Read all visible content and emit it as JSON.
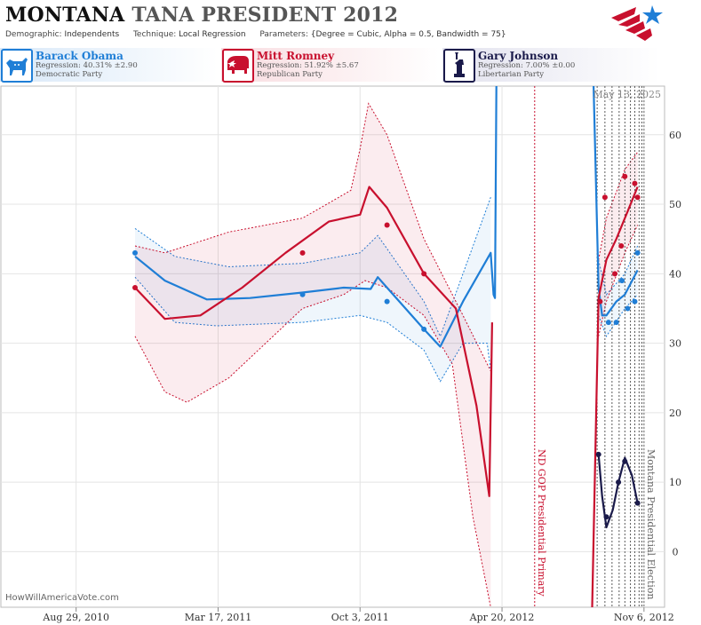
{
  "header": {
    "title_main": "MONTANA",
    "title_rest": "TANA PRESIDENT 2012",
    "demographic_label": "Demographic:",
    "demographic_value": "Independents",
    "technique_label": "Technique:",
    "technique_value": "Local Regression",
    "parameters_label": "Parameters:",
    "parameters_value": "{Degree = Cubic, Alpha = 0.5, Bandwidth = 75}"
  },
  "logo_icon": "star-stripes-logo-icon",
  "candidates": [
    {
      "name": "Barack Obama",
      "regression": "Regression: 40.31% ±2.90",
      "party": "Democratic Party",
      "color": "#1f7ed6",
      "icon": "donkey-icon"
    },
    {
      "name": "Mitt Romney",
      "regression": "Regression: 51.92% ±5.67",
      "party": "Republican Party",
      "color": "#c8102e",
      "icon": "elephant-icon"
    },
    {
      "name": "Gary Johnson",
      "regression": "Regression: 7.00% ±0.00",
      "party": "Libertarian Party",
      "color": "#1a1a4a",
      "icon": "liberty-statue-icon"
    }
  ],
  "footer_brand": "HowWillAmericaVote.com",
  "chart_data": {
    "type": "line",
    "date_stamp": "May 13, 2025",
    "x_ticks": [
      "Aug 29, 2010",
      "Mar 17, 2011",
      "Oct 3, 2011",
      "Apr 20, 2012",
      "Nov 6, 2012"
    ],
    "x_range": [
      "2010-05-15",
      "2012-12-05"
    ],
    "y_ticks": [
      0,
      10,
      20,
      30,
      40,
      50,
      60
    ],
    "ylim": [
      -8,
      67
    ],
    "grid": true,
    "events": [
      {
        "date": "2012-06-05",
        "label": "ND GOP Presidential Primary",
        "color": "#c8102e"
      },
      {
        "date": "2012-11-06",
        "label": "Montana Presidential Election",
        "color": "#666666"
      }
    ],
    "poll_lines": [
      "2012-09-01",
      "2012-09-12",
      "2012-09-22",
      "2012-10-02",
      "2012-10-10",
      "2012-10-18",
      "2012-10-24",
      "2012-10-30",
      "2012-11-03"
    ],
    "series": [
      {
        "name": "Barack Obama",
        "color": "#1f7ed6",
        "points": [
          [
            "2010-11-20",
            43
          ],
          [
            "2011-07-14",
            37
          ],
          [
            "2011-11-10",
            36
          ],
          [
            "2012-01-01",
            32
          ],
          [
            "2012-09-05",
            36
          ],
          [
            "2012-09-17",
            33
          ],
          [
            "2012-09-28",
            33
          ],
          [
            "2012-10-06",
            39
          ],
          [
            "2012-10-14",
            35
          ],
          [
            "2012-10-24",
            36
          ],
          [
            "2012-10-28",
            43
          ]
        ],
        "trend": [
          [
            "2010-11-20",
            42.5
          ],
          [
            "2011-01-01",
            39
          ],
          [
            "2011-03-01",
            36.3
          ],
          [
            "2011-05-01",
            36.5
          ],
          [
            "2011-07-14",
            37.3
          ],
          [
            "2011-09-10",
            38
          ],
          [
            "2011-10-18",
            37.8
          ],
          [
            "2011-10-28",
            39.5
          ],
          [
            "2011-11-10",
            38
          ],
          [
            "2012-01-01",
            32
          ],
          [
            "2012-01-24",
            29.5
          ],
          [
            "2012-02-25",
            36
          ],
          [
            "2012-04-04",
            43
          ],
          [
            "2012-04-08",
            37
          ],
          [
            "2012-04-10",
            36.5
          ],
          [
            "2012-04-12",
            75
          ]
        ],
        "trend2": [
          [
            "2012-08-27",
            75
          ],
          [
            "2012-09-03",
            38
          ],
          [
            "2012-09-08",
            34
          ],
          [
            "2012-09-14",
            34
          ],
          [
            "2012-09-28",
            36
          ],
          [
            "2012-10-10",
            37
          ],
          [
            "2012-10-28",
            40.5
          ]
        ],
        "upper": [
          [
            "2010-11-20",
            46.5
          ],
          [
            "2011-01-15",
            42.5
          ],
          [
            "2011-04-01",
            41
          ],
          [
            "2011-07-14",
            41.5
          ],
          [
            "2011-10-03",
            43
          ],
          [
            "2011-10-28",
            45.5
          ],
          [
            "2012-01-01",
            36
          ],
          [
            "2012-01-24",
            31
          ],
          [
            "2012-02-25",
            40
          ],
          [
            "2012-04-04",
            51
          ]
        ],
        "lower": [
          [
            "2010-11-20",
            39.5
          ],
          [
            "2011-01-15",
            33
          ],
          [
            "2011-03-15",
            32.5
          ],
          [
            "2011-07-14",
            33
          ],
          [
            "2011-10-03",
            34
          ],
          [
            "2011-11-10",
            33
          ],
          [
            "2012-01-01",
            29
          ],
          [
            "2012-01-24",
            24.5
          ],
          [
            "2012-02-25",
            30
          ],
          [
            "2012-03-30",
            30
          ],
          [
            "2012-04-04",
            26
          ]
        ],
        "upper2": [
          [
            "2012-09-03",
            42
          ],
          [
            "2012-09-14",
            37
          ],
          [
            "2012-10-10",
            40
          ],
          [
            "2012-10-28",
            44
          ]
        ],
        "lower2": [
          [
            "2012-09-03",
            34
          ],
          [
            "2012-09-14",
            31
          ],
          [
            "2012-10-10",
            35
          ],
          [
            "2012-10-28",
            37
          ]
        ]
      },
      {
        "name": "Mitt Romney",
        "color": "#c8102e",
        "points": [
          [
            "2010-11-20",
            38
          ],
          [
            "2011-07-14",
            43
          ],
          [
            "2011-11-10",
            47
          ],
          [
            "2012-01-01",
            40
          ],
          [
            "2012-09-05",
            36
          ],
          [
            "2012-09-12",
            51
          ],
          [
            "2012-09-26",
            40
          ],
          [
            "2012-10-05",
            44
          ],
          [
            "2012-10-10",
            54
          ],
          [
            "2012-10-24",
            53
          ],
          [
            "2012-10-28",
            51
          ]
        ],
        "trend": [
          [
            "2010-11-20",
            38
          ],
          [
            "2011-01-01",
            33.5
          ],
          [
            "2011-02-20",
            34
          ],
          [
            "2011-04-20",
            38
          ],
          [
            "2011-06-20",
            43
          ],
          [
            "2011-08-20",
            47.5
          ],
          [
            "2011-10-03",
            48.5
          ],
          [
            "2011-10-16",
            52.5
          ],
          [
            "2011-11-10",
            49.5
          ],
          [
            "2012-01-01",
            40
          ],
          [
            "2012-02-15",
            35
          ],
          [
            "2012-03-15",
            21
          ],
          [
            "2012-04-02",
            8
          ],
          [
            "2012-04-06",
            33
          ]
        ],
        "trend2": [
          [
            "2012-08-25",
            -25
          ],
          [
            "2012-09-03",
            36.5
          ],
          [
            "2012-09-14",
            42
          ],
          [
            "2012-09-28",
            45
          ],
          [
            "2012-10-14",
            49
          ],
          [
            "2012-10-28",
            52.5
          ]
        ],
        "upper": [
          [
            "2010-11-20",
            44
          ],
          [
            "2011-01-01",
            43
          ],
          [
            "2011-04-01",
            46
          ],
          [
            "2011-07-14",
            48
          ],
          [
            "2011-09-20",
            52
          ],
          [
            "2011-10-03",
            58
          ],
          [
            "2011-10-15",
            64.5
          ],
          [
            "2011-11-10",
            60
          ],
          [
            "2012-01-01",
            45
          ],
          [
            "2012-02-25",
            34
          ],
          [
            "2012-04-04",
            26
          ]
        ],
        "lower": [
          [
            "2010-11-20",
            31
          ],
          [
            "2011-01-01",
            23
          ],
          [
            "2011-02-01",
            21.5
          ],
          [
            "2011-04-01",
            25
          ],
          [
            "2011-07-14",
            35
          ],
          [
            "2011-09-10",
            37
          ],
          [
            "2011-10-10",
            39
          ],
          [
            "2011-11-10",
            38
          ],
          [
            "2012-01-01",
            34
          ],
          [
            "2012-02-10",
            27
          ],
          [
            "2012-03-10",
            5
          ],
          [
            "2012-04-04",
            -8
          ]
        ],
        "upper2": [
          [
            "2012-09-03",
            42
          ],
          [
            "2012-09-14",
            48
          ],
          [
            "2012-10-10",
            55
          ],
          [
            "2012-10-28",
            57.5
          ]
        ],
        "lower2": [
          [
            "2012-09-03",
            31
          ],
          [
            "2012-09-14",
            36
          ],
          [
            "2012-10-10",
            43
          ],
          [
            "2012-10-28",
            47
          ]
        ]
      },
      {
        "name": "Gary Johnson",
        "color": "#1a1a4a",
        "points": [
          [
            "2012-09-03",
            14
          ],
          [
            "2012-09-14",
            5
          ],
          [
            "2012-10-01",
            10
          ],
          [
            "2012-10-10",
            13
          ],
          [
            "2012-10-28",
            7
          ]
        ],
        "trend": [
          [
            "2012-09-03",
            14
          ],
          [
            "2012-09-08",
            8
          ],
          [
            "2012-09-14",
            3.5
          ],
          [
            "2012-09-23",
            6
          ],
          [
            "2012-10-01",
            10
          ],
          [
            "2012-10-10",
            13.5
          ],
          [
            "2012-10-20",
            11
          ],
          [
            "2012-10-28",
            7
          ]
        ],
        "trend2": [],
        "upper": [],
        "lower": [],
        "upper2": [],
        "lower2": []
      }
    ]
  }
}
